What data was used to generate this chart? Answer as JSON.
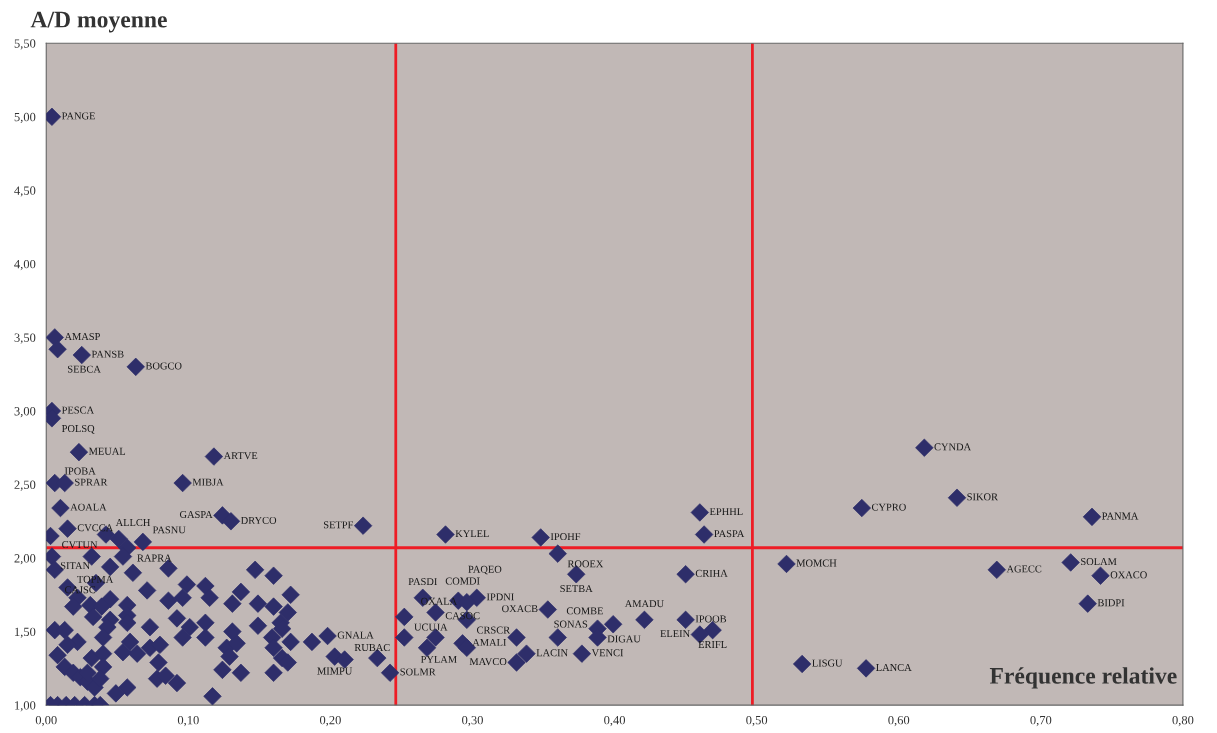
{
  "chart_data": {
    "type": "scatter",
    "ylabel": "A/D moyenne",
    "xlabel": "Fréquence relative",
    "marker": "diamond",
    "grid": false,
    "legend": false,
    "xlim": [
      0,
      0.8
    ],
    "ylim": [
      1,
      5.5
    ],
    "xticks": [
      {
        "value": 0,
        "label": "0,00"
      },
      {
        "value": 0.1,
        "label": "0,10"
      },
      {
        "value": 0.2,
        "label": "0,20"
      },
      {
        "value": 0.3,
        "label": "0,30"
      },
      {
        "value": 0.4,
        "label": "0,40"
      },
      {
        "value": 0.5,
        "label": "0,50"
      },
      {
        "value": 0.6,
        "label": "0,60"
      },
      {
        "value": 0.7,
        "label": "0,70"
      },
      {
        "value": 0.8,
        "label": "0,80"
      }
    ],
    "yticks": [
      {
        "value": 1,
        "label": "1,00"
      },
      {
        "value": 1.5,
        "label": "1,50"
      },
      {
        "value": 2,
        "label": "2,00"
      },
      {
        "value": 2.5,
        "label": "2,50"
      },
      {
        "value": 3,
        "label": "3,00"
      },
      {
        "value": 3.5,
        "label": "3,50"
      },
      {
        "value": 4,
        "label": "4,00"
      },
      {
        "value": 4.5,
        "label": "4,50"
      },
      {
        "value": 5,
        "label": "5,00"
      },
      {
        "value": 5.5,
        "label": "5,50"
      }
    ],
    "ref_lines": [
      {
        "axis": "x",
        "value": 0.246,
        "color": "#ee1c25"
      },
      {
        "axis": "x",
        "value": 0.497,
        "color": "#ee1c25"
      },
      {
        "axis": "y",
        "value": 2.07,
        "color": "#ee1c25"
      }
    ],
    "series": [
      {
        "color": "#2e2e6a",
        "x": [
          0.004,
          0.006,
          0.008,
          0.025,
          0.063,
          0.004,
          0.004,
          0.023,
          0.118,
          0.006,
          0.013,
          0.096,
          0.01,
          0.124,
          0.13,
          0.015,
          0.003,
          0.042,
          0.068,
          0.057,
          0.051,
          0.004,
          0.054,
          0.006,
          0.223,
          0.281,
          0.348,
          0.36,
          0.373,
          0.46,
          0.463,
          0.45,
          0.618,
          0.641,
          0.574,
          0.736,
          0.521,
          0.669,
          0.721,
          0.742,
          0.733,
          0.532,
          0.577,
          0.421,
          0.45,
          0.469,
          0.46,
          0.399,
          0.388,
          0.388,
          0.377,
          0.353,
          0.338,
          0.331,
          0.296,
          0.293,
          0.296,
          0.198,
          0.203,
          0.21,
          0.242,
          0.252,
          0.274,
          0.274,
          0.265,
          0.29,
          0.303,
          0.296,
          0.331,
          0.36,
          0.233,
          0.252,
          0.268,
          0.032,
          0.045,
          0.061,
          0.086,
          0.147,
          0.16,
          0.015,
          0.035,
          0.071,
          0.099,
          0.112,
          0.115,
          0.096,
          0.086,
          0.137,
          0.131,
          0.149,
          0.16,
          0.172,
          0.17,
          0.022,
          0.019,
          0.031,
          0.045,
          0.039,
          0.057,
          0.057,
          0.033,
          0.045,
          0.057,
          0.073,
          0.092,
          0.101,
          0.112,
          0.131,
          0.149,
          0.165,
          0.166,
          0.006,
          0.013,
          0.043,
          0.04,
          0.022,
          0.015,
          0.059,
          0.054,
          0.064,
          0.073,
          0.08,
          0.096,
          0.112,
          0.127,
          0.134,
          0.129,
          0.159,
          0.16,
          0.172,
          0.187,
          0.166,
          0.17,
          0.008,
          0.013,
          0.019,
          0.024,
          0.029,
          0.034,
          0.032,
          0.04,
          0.04,
          0.029,
          0.038,
          0.079,
          0.078,
          0.084,
          0.092,
          0.124,
          0.137,
          0.16,
          0.057,
          0.049,
          0.117,
          0.003,
          0.008,
          0.014,
          0.02,
          0.027,
          0.034,
          0.038
        ],
        "values": [
          5.0,
          3.5,
          3.42,
          3.38,
          3.3,
          3.0,
          2.95,
          2.72,
          2.69,
          2.51,
          2.51,
          2.51,
          2.34,
          2.29,
          2.25,
          2.2,
          2.15,
          2.16,
          2.11,
          2.07,
          2.13,
          2.01,
          2.01,
          1.92,
          2.22,
          2.16,
          2.14,
          2.03,
          1.89,
          2.31,
          2.16,
          1.89,
          2.75,
          2.41,
          2.34,
          2.28,
          1.96,
          1.92,
          1.97,
          1.88,
          1.69,
          1.28,
          1.25,
          1.58,
          1.58,
          1.51,
          1.48,
          1.55,
          1.52,
          1.46,
          1.35,
          1.65,
          1.35,
          1.29,
          1.58,
          1.42,
          1.39,
          1.47,
          1.33,
          1.31,
          1.22,
          1.6,
          1.63,
          1.46,
          1.73,
          1.71,
          1.73,
          1.7,
          1.46,
          1.46,
          1.32,
          1.46,
          1.39,
          2.01,
          1.94,
          1.9,
          1.93,
          1.92,
          1.88,
          1.8,
          1.83,
          1.78,
          1.82,
          1.81,
          1.73,
          1.73,
          1.71,
          1.77,
          1.69,
          1.69,
          1.67,
          1.75,
          1.63,
          1.73,
          1.67,
          1.68,
          1.72,
          1.67,
          1.68,
          1.61,
          1.6,
          1.58,
          1.56,
          1.53,
          1.59,
          1.53,
          1.56,
          1.5,
          1.54,
          1.56,
          1.52,
          1.51,
          1.51,
          1.53,
          1.46,
          1.43,
          1.41,
          1.43,
          1.36,
          1.35,
          1.39,
          1.41,
          1.46,
          1.46,
          1.39,
          1.42,
          1.33,
          1.46,
          1.39,
          1.43,
          1.43,
          1.32,
          1.29,
          1.34,
          1.26,
          1.22,
          1.19,
          1.16,
          1.12,
          1.32,
          1.35,
          1.26,
          1.22,
          1.18,
          1.29,
          1.18,
          1.2,
          1.15,
          1.24,
          1.22,
          1.22,
          1.12,
          1.08,
          1.06,
          1.0,
          1.0,
          1.0,
          1.0,
          1.0,
          1.0,
          1.0
        ]
      }
    ],
    "annotations": [
      {
        "text": "PANGE",
        "x": 0.004,
        "y": 5.0
      },
      {
        "text": "AMASP",
        "x": 0.006,
        "y": 3.5
      },
      {
        "text": "SEBCA",
        "x": 0.008,
        "y": 3.42
      },
      {
        "text": "PANSB",
        "x": 0.025,
        "y": 3.38
      },
      {
        "text": "BOGCO",
        "x": 0.063,
        "y": 3.3
      },
      {
        "text": "PESCA",
        "x": 0.004,
        "y": 3.0
      },
      {
        "text": "POLSQ",
        "x": 0.004,
        "y": 2.95
      },
      {
        "text": "MEUAL",
        "x": 0.023,
        "y": 2.72
      },
      {
        "text": "ARTVE",
        "x": 0.118,
        "y": 2.69
      },
      {
        "text": "IPOBA",
        "x": 0.006,
        "y": 2.51
      },
      {
        "text": "SPRAR",
        "x": 0.013,
        "y": 2.51
      },
      {
        "text": "MIBJA",
        "x": 0.096,
        "y": 2.51
      },
      {
        "text": "AOALA",
        "x": 0.01,
        "y": 2.34
      },
      {
        "text": "GASPA",
        "x": 0.124,
        "y": 2.29
      },
      {
        "text": "DRYCO",
        "x": 0.13,
        "y": 2.25
      },
      {
        "text": "CVCCA",
        "x": 0.015,
        "y": 2.2
      },
      {
        "text": "SITAN",
        "x": 0.003,
        "y": 2.15
      },
      {
        "text": "ALLCH",
        "x": 0.042,
        "y": 2.16
      },
      {
        "text": "PASNU",
        "x": 0.068,
        "y": 2.11
      },
      {
        "text": "RAPRA",
        "x": 0.057,
        "y": 2.07
      },
      {
        "text": "CVTUN",
        "x": 0.004,
        "y": 2.01
      },
      {
        "text": "TOPMA",
        "x": 0.054,
        "y": 2.01
      },
      {
        "text": "CAJSC",
        "x": 0.006,
        "y": 1.92
      },
      {
        "text": "SETPF",
        "x": 0.223,
        "y": 2.22
      },
      {
        "text": "KYLEL",
        "x": 0.281,
        "y": 2.16
      },
      {
        "text": "IPOHF",
        "x": 0.348,
        "y": 2.14
      },
      {
        "text": "ROOEX",
        "x": 0.36,
        "y": 2.03
      },
      {
        "text": "SETBA",
        "x": 0.373,
        "y": 1.89
      },
      {
        "text": "EPHHL",
        "x": 0.46,
        "y": 2.31
      },
      {
        "text": "PASPA",
        "x": 0.463,
        "y": 2.16
      },
      {
        "text": "CRIHA",
        "x": 0.45,
        "y": 1.89
      },
      {
        "text": "CYNDA",
        "x": 0.618,
        "y": 2.75
      },
      {
        "text": "SIKOR",
        "x": 0.641,
        "y": 2.41
      },
      {
        "text": "CYPRO",
        "x": 0.574,
        "y": 2.34
      },
      {
        "text": "PANMA",
        "x": 0.736,
        "y": 2.28
      },
      {
        "text": "MOMCH",
        "x": 0.521,
        "y": 1.96
      },
      {
        "text": "AGECC",
        "x": 0.669,
        "y": 1.92
      },
      {
        "text": "SOLAM",
        "x": 0.721,
        "y": 1.97
      },
      {
        "text": "OXACO",
        "x": 0.742,
        "y": 1.88
      },
      {
        "text": "BIDPI",
        "x": 0.733,
        "y": 1.69
      },
      {
        "text": "LISGU",
        "x": 0.532,
        "y": 1.28
      },
      {
        "text": "LANCA",
        "x": 0.577,
        "y": 1.25
      },
      {
        "text": "AMADU",
        "x": 0.421,
        "y": 1.58
      },
      {
        "text": "IPOOB",
        "x": 0.45,
        "y": 1.58
      },
      {
        "text": "ERIFL",
        "x": 0.469,
        "y": 1.51
      },
      {
        "text": "ELEIN",
        "x": 0.46,
        "y": 1.48
      },
      {
        "text": "COMBE",
        "x": 0.399,
        "y": 1.55
      },
      {
        "text": "DIGAU",
        "x": 0.388,
        "y": 1.52
      },
      {
        "text": "SONAS",
        "x": 0.388,
        "y": 1.46
      },
      {
        "text": "VENCI",
        "x": 0.377,
        "y": 1.35
      },
      {
        "text": "OXACB",
        "x": 0.353,
        "y": 1.65
      },
      {
        "text": "LACIN",
        "x": 0.338,
        "y": 1.35
      },
      {
        "text": "MAVCO",
        "x": 0.331,
        "y": 1.29
      },
      {
        "text": "CRSCR",
        "x": 0.296,
        "y": 1.58
      },
      {
        "text": "AMALI",
        "x": 0.293,
        "y": 1.42
      },
      {
        "text": "PYLAM",
        "x": 0.296,
        "y": 1.39
      },
      {
        "text": "GNALA",
        "x": 0.198,
        "y": 1.47
      },
      {
        "text": "MIMPU",
        "x": 0.203,
        "y": 1.33
      },
      {
        "text": "RUBAC",
        "x": 0.21,
        "y": 1.31
      },
      {
        "text": "SOLMR",
        "x": 0.242,
        "y": 1.22
      },
      {
        "text": "UCUJA",
        "x": 0.252,
        "y": 1.6
      },
      {
        "text": "COMDI",
        "x": 0.274,
        "y": 1.63
      },
      {
        "text": "CASOC",
        "x": 0.274,
        "y": 1.46
      },
      {
        "text": "PASDI",
        "x": 0.265,
        "y": 1.73
      },
      {
        "text": "PAQEO",
        "x": 0.29,
        "y": 1.71
      },
      {
        "text": "IPDNI",
        "x": 0.303,
        "y": 1.73
      },
      {
        "text": "OXALA",
        "x": 0.296,
        "y": 1.7
      }
    ]
  }
}
